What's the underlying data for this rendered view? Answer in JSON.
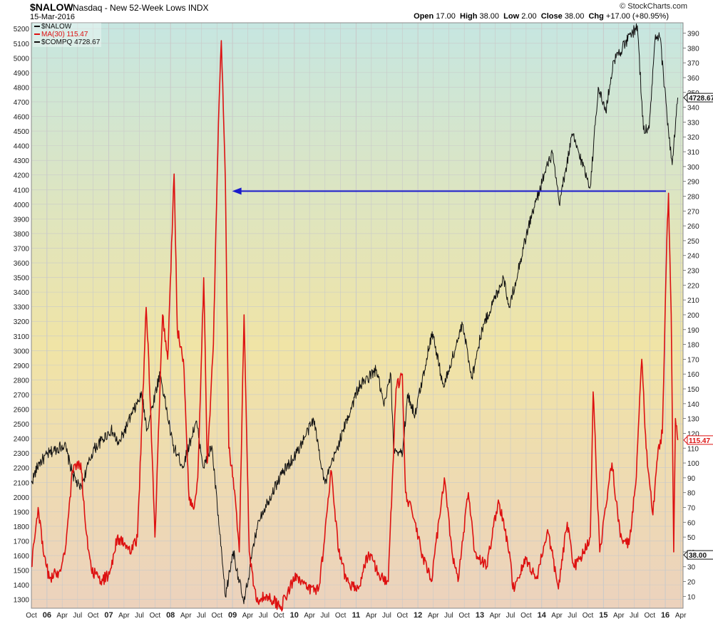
{
  "header": {
    "symbol": "$NALOW",
    "description": "Nasdaq - New 52-Week Lows  INDX",
    "date": "15-Mar-2016",
    "open_label": "Open",
    "open": "17.00",
    "high_label": "High",
    "high": "38.00",
    "low_label": "Low",
    "low": "2.00",
    "close_label": "Close",
    "close": "38.00",
    "chg_label": "Chg",
    "chg": "+17.00 (+80.95%)",
    "brand": "© StockCharts.com"
  },
  "colors": {
    "ma_line": "#dd1111",
    "compq_line": "#111111",
    "arrow": "#1a1acc",
    "grid": "#c9c9c9",
    "bg_top": "#c6e6e1",
    "bg_mid": "#f0e4a6",
    "bg_bottom": "#ecd2bd"
  },
  "chart_data": {
    "type": "line",
    "x_unit": "date",
    "legend": [
      {
        "label": "$NALOW",
        "color": "#111111"
      },
      {
        "label": "MA(30) 115.47",
        "color": "#dd1111"
      },
      {
        "label": "$COMPQ 4728.67",
        "color": "#111111"
      }
    ],
    "left_axis": {
      "ylim": [
        1240,
        5240
      ],
      "ticks": [
        1300,
        1400,
        1500,
        1600,
        1700,
        1800,
        1900,
        2000,
        2100,
        2200,
        2300,
        2400,
        2500,
        2600,
        2700,
        2800,
        2900,
        3000,
        3100,
        3200,
        3300,
        3400,
        3500,
        3600,
        3700,
        3800,
        3900,
        4000,
        4100,
        4200,
        4300,
        4400,
        4500,
        4600,
        4700,
        4800,
        4900,
        5000,
        5100,
        5200
      ]
    },
    "right_axis": {
      "ylim": [
        2,
        397
      ],
      "ticks": [
        10,
        20,
        30,
        40,
        50,
        60,
        70,
        80,
        90,
        100,
        110,
        120,
        130,
        140,
        150,
        160,
        170,
        180,
        190,
        200,
        210,
        220,
        230,
        240,
        250,
        260,
        270,
        280,
        290,
        300,
        310,
        320,
        330,
        340,
        350,
        360,
        370,
        380,
        390
      ]
    },
    "xlim": [
      "2005-10-01",
      "2016-04-15"
    ],
    "x_ticks": [
      {
        "date": "2005-10-01",
        "label": "Oct"
      },
      {
        "date": "2006-01-01",
        "label": "06",
        "year": true
      },
      {
        "date": "2006-04-01",
        "label": "Apr"
      },
      {
        "date": "2006-07-01",
        "label": "Jul"
      },
      {
        "date": "2006-10-01",
        "label": "Oct"
      },
      {
        "date": "2007-01-01",
        "label": "07",
        "year": true
      },
      {
        "date": "2007-04-01",
        "label": "Apr"
      },
      {
        "date": "2007-07-01",
        "label": "Jul"
      },
      {
        "date": "2007-10-01",
        "label": "Oct"
      },
      {
        "date": "2008-01-01",
        "label": "08",
        "year": true
      },
      {
        "date": "2008-04-01",
        "label": "Apr"
      },
      {
        "date": "2008-07-01",
        "label": "Jul"
      },
      {
        "date": "2008-10-01",
        "label": "Oct"
      },
      {
        "date": "2009-01-01",
        "label": "09",
        "year": true
      },
      {
        "date": "2009-04-01",
        "label": "Apr"
      },
      {
        "date": "2009-07-01",
        "label": "Jul"
      },
      {
        "date": "2009-10-01",
        "label": "Oct"
      },
      {
        "date": "2010-01-01",
        "label": "10",
        "year": true
      },
      {
        "date": "2010-04-01",
        "label": "Apr"
      },
      {
        "date": "2010-07-01",
        "label": "Jul"
      },
      {
        "date": "2010-10-01",
        "label": "Oct"
      },
      {
        "date": "2011-01-01",
        "label": "11",
        "year": true
      },
      {
        "date": "2011-04-01",
        "label": "Apr"
      },
      {
        "date": "2011-07-01",
        "label": "Jul"
      },
      {
        "date": "2011-10-01",
        "label": "Oct"
      },
      {
        "date": "2012-01-01",
        "label": "12",
        "year": true
      },
      {
        "date": "2012-04-01",
        "label": "Apr"
      },
      {
        "date": "2012-07-01",
        "label": "Jul"
      },
      {
        "date": "2012-10-01",
        "label": "Oct"
      },
      {
        "date": "2013-01-01",
        "label": "13",
        "year": true
      },
      {
        "date": "2013-04-01",
        "label": "Apr"
      },
      {
        "date": "2013-07-01",
        "label": "Jul"
      },
      {
        "date": "2013-10-01",
        "label": "Oct"
      },
      {
        "date": "2014-01-01",
        "label": "14",
        "year": true
      },
      {
        "date": "2014-04-01",
        "label": "Apr"
      },
      {
        "date": "2014-07-01",
        "label": "Jul"
      },
      {
        "date": "2014-10-01",
        "label": "Oct"
      },
      {
        "date": "2015-01-01",
        "label": "15",
        "year": true
      },
      {
        "date": "2015-04-01",
        "label": "Apr"
      },
      {
        "date": "2015-07-01",
        "label": "Jul"
      },
      {
        "date": "2015-10-01",
        "label": "Oct"
      },
      {
        "date": "2016-01-01",
        "label": "16",
        "year": true
      },
      {
        "date": "2016-04-01",
        "label": "Apr"
      }
    ],
    "series": [
      {
        "name": "$COMPQ",
        "axis": "left",
        "points": [
          [
            "2005-10-01",
            2100
          ],
          [
            "2005-11-15",
            2230
          ],
          [
            "2006-01-15",
            2300
          ],
          [
            "2006-04-15",
            2360
          ],
          [
            "2006-06-01",
            2160
          ],
          [
            "2006-07-15",
            2050
          ],
          [
            "2006-10-01",
            2320
          ],
          [
            "2007-01-15",
            2460
          ],
          [
            "2007-03-01",
            2360
          ],
          [
            "2007-05-15",
            2560
          ],
          [
            "2007-07-15",
            2700
          ],
          [
            "2007-08-15",
            2460
          ],
          [
            "2007-10-31",
            2850
          ],
          [
            "2008-01-15",
            2350
          ],
          [
            "2008-03-15",
            2210
          ],
          [
            "2008-05-31",
            2520
          ],
          [
            "2008-07-15",
            2200
          ],
          [
            "2008-09-01",
            2350
          ],
          [
            "2008-10-15",
            1780
          ],
          [
            "2008-11-20",
            1320
          ],
          [
            "2009-01-05",
            1630
          ],
          [
            "2009-03-09",
            1270
          ],
          [
            "2009-06-01",
            1840
          ],
          [
            "2009-10-15",
            2150
          ],
          [
            "2010-01-15",
            2300
          ],
          [
            "2010-04-25",
            2530
          ],
          [
            "2010-07-01",
            2090
          ],
          [
            "2010-10-15",
            2450
          ],
          [
            "2011-01-15",
            2750
          ],
          [
            "2011-05-01",
            2870
          ],
          [
            "2011-06-15",
            2620
          ],
          [
            "2011-07-25",
            2840
          ],
          [
            "2011-08-10",
            2330
          ],
          [
            "2011-10-03",
            2300
          ],
          [
            "2011-10-31",
            2700
          ],
          [
            "2011-12-15",
            2560
          ],
          [
            "2012-03-25",
            3130
          ],
          [
            "2012-06-01",
            2750
          ],
          [
            "2012-09-20",
            3180
          ],
          [
            "2012-11-15",
            2820
          ],
          [
            "2013-01-15",
            3150
          ],
          [
            "2013-05-20",
            3500
          ],
          [
            "2013-06-25",
            3300
          ],
          [
            "2013-10-15",
            3850
          ],
          [
            "2014-01-15",
            4200
          ],
          [
            "2014-03-05",
            4350
          ],
          [
            "2014-04-15",
            4000
          ],
          [
            "2014-07-01",
            4480
          ],
          [
            "2014-10-15",
            4120
          ],
          [
            "2014-12-01",
            4800
          ],
          [
            "2015-01-15",
            4630
          ],
          [
            "2015-03-01",
            4980
          ],
          [
            "2015-07-20",
            5220
          ],
          [
            "2015-08-25",
            4510
          ],
          [
            "2015-09-28",
            4520
          ],
          [
            "2015-11-01",
            5120
          ],
          [
            "2015-12-01",
            5140
          ],
          [
            "2016-01-20",
            4500
          ],
          [
            "2016-02-11",
            4270
          ],
          [
            "2016-03-15",
            4728.67
          ]
        ]
      },
      {
        "name": "MA(30)",
        "axis": "right",
        "points": [
          [
            "2005-10-01",
            30
          ],
          [
            "2005-11-10",
            70
          ],
          [
            "2005-12-10",
            40
          ],
          [
            "2006-01-15",
            22
          ],
          [
            "2006-03-15",
            27
          ],
          [
            "2006-04-20",
            42
          ],
          [
            "2006-06-01",
            95
          ],
          [
            "2006-07-20",
            100
          ],
          [
            "2006-08-15",
            60
          ],
          [
            "2006-09-20",
            28
          ],
          [
            "2006-11-15",
            20
          ],
          [
            "2007-01-05",
            25
          ],
          [
            "2007-02-20",
            50
          ],
          [
            "2007-04-01",
            45
          ],
          [
            "2007-05-15",
            40
          ],
          [
            "2007-06-20",
            50
          ],
          [
            "2007-08-10",
            205
          ],
          [
            "2007-08-25",
            170
          ],
          [
            "2007-10-01",
            50
          ],
          [
            "2007-11-15",
            200
          ],
          [
            "2007-12-15",
            170
          ],
          [
            "2008-01-22",
            295
          ],
          [
            "2008-02-10",
            190
          ],
          [
            "2008-03-17",
            170
          ],
          [
            "2008-04-20",
            75
          ],
          [
            "2008-05-20",
            70
          ],
          [
            "2008-06-10",
            90
          ],
          [
            "2008-07-15",
            225
          ],
          [
            "2008-08-05",
            100
          ],
          [
            "2008-09-10",
            180
          ],
          [
            "2008-10-10",
            330
          ],
          [
            "2008-10-27",
            385
          ],
          [
            "2008-11-20",
            290
          ],
          [
            "2008-12-10",
            110
          ],
          [
            "2009-01-05",
            90
          ],
          [
            "2009-02-10",
            40
          ],
          [
            "2009-03-10",
            200
          ],
          [
            "2009-04-10",
            40
          ],
          [
            "2009-05-20",
            8
          ],
          [
            "2009-08-01",
            10
          ],
          [
            "2009-10-15",
            3
          ],
          [
            "2010-01-15",
            25
          ],
          [
            "2010-03-15",
            15
          ],
          [
            "2010-05-25",
            15
          ],
          [
            "2010-06-25",
            45
          ],
          [
            "2010-08-05",
            95
          ],
          [
            "2010-09-20",
            40
          ],
          [
            "2010-11-05",
            20
          ],
          [
            "2011-01-15",
            15
          ],
          [
            "2011-03-15",
            40
          ],
          [
            "2011-05-15",
            25
          ],
          [
            "2011-07-10",
            20
          ],
          [
            "2011-08-25",
            150
          ],
          [
            "2011-10-01",
            160
          ],
          [
            "2011-10-20",
            80
          ],
          [
            "2011-12-15",
            60
          ],
          [
            "2012-01-20",
            40
          ],
          [
            "2012-03-20",
            20
          ],
          [
            "2012-06-05",
            90
          ],
          [
            "2012-07-20",
            40
          ],
          [
            "2012-08-25",
            20
          ],
          [
            "2012-10-25",
            80
          ],
          [
            "2012-12-01",
            40
          ],
          [
            "2013-02-10",
            30
          ],
          [
            "2013-04-20",
            75
          ],
          [
            "2013-06-25",
            40
          ],
          [
            "2013-07-15",
            15
          ],
          [
            "2013-10-01",
            35
          ],
          [
            "2013-12-01",
            22
          ],
          [
            "2014-02-05",
            55
          ],
          [
            "2014-04-10",
            15
          ],
          [
            "2014-06-01",
            60
          ],
          [
            "2014-07-10",
            30
          ],
          [
            "2014-08-15",
            35
          ],
          [
            "2014-10-15",
            50
          ],
          [
            "2014-11-01",
            148
          ],
          [
            "2014-12-10",
            40
          ],
          [
            "2015-01-15",
            70
          ],
          [
            "2015-02-20",
            100
          ],
          [
            "2015-04-10",
            50
          ],
          [
            "2015-06-01",
            45
          ],
          [
            "2015-07-10",
            85
          ],
          [
            "2015-08-15",
            170
          ],
          [
            "2015-09-10",
            110
          ],
          [
            "2015-10-20",
            65
          ],
          [
            "2015-11-20",
            110
          ],
          [
            "2015-12-15",
            120
          ],
          [
            "2016-01-10",
            250
          ],
          [
            "2016-01-20",
            282
          ],
          [
            "2016-02-05",
            200
          ],
          [
            "2016-02-20",
            40
          ],
          [
            "2016-03-01",
            130
          ],
          [
            "2016-03-15",
            115.47
          ]
        ]
      }
    ],
    "arrow": {
      "axis": "left",
      "value": 4090,
      "x_start": "2016-01-05",
      "x_end": "2008-12-30",
      "color": "#1a1acc"
    },
    "last_value_labels": [
      {
        "text": "4728.67",
        "axis": "left",
        "value": 4728.67,
        "color": "#111111"
      },
      {
        "text": "115.47",
        "axis": "right",
        "value": 115.47,
        "color": "#dd1111"
      },
      {
        "text": "38.00",
        "axis": "right",
        "value": 38,
        "color": "#111111"
      }
    ]
  }
}
